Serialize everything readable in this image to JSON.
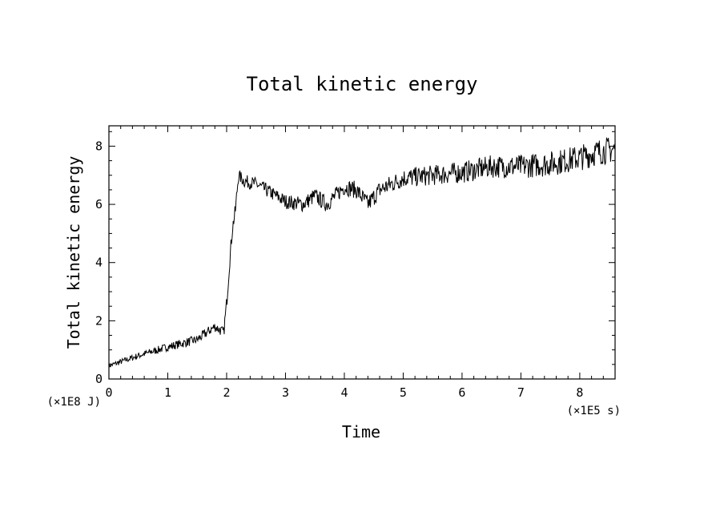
{
  "chart_data": {
    "type": "line",
    "title": "Total kinetic energy",
    "xlabel": "Time",
    "ylabel": "Total kinetic energy",
    "x_unit": "(×1E5 s)",
    "y_unit": "(×1E8 J)",
    "xlim": [
      0,
      8.6
    ],
    "ylim": [
      0,
      8.7
    ],
    "x_ticks": [
      "0",
      "1",
      "2",
      "3",
      "4",
      "5",
      "6",
      "7",
      "8"
    ],
    "y_ticks": [
      "0",
      "2",
      "4",
      "6",
      "8"
    ],
    "grid": false,
    "legend": "none",
    "line_color": "#000000",
    "series": [
      {
        "x": [
          0,
          0.5,
          1.0,
          1.5,
          1.8,
          1.95,
          2.0,
          2.05,
          2.1,
          2.15,
          2.2,
          2.3,
          2.5,
          3.0,
          3.3,
          3.5,
          3.7,
          4.0,
          4.2,
          4.4,
          4.6,
          5.0,
          5.5,
          6.0,
          6.5,
          7.0,
          7.5,
          8.0,
          8.3,
          8.6
        ],
        "y": [
          0.45,
          0.8,
          1.1,
          1.35,
          1.8,
          1.6,
          2.6,
          4.0,
          5.2,
          5.8,
          7.0,
          6.8,
          6.7,
          6.1,
          6.0,
          6.3,
          6.0,
          6.6,
          6.5,
          6.0,
          6.5,
          6.9,
          7.0,
          7.1,
          7.3,
          7.3,
          7.4,
          7.6,
          7.8,
          7.9
        ]
      }
    ]
  }
}
